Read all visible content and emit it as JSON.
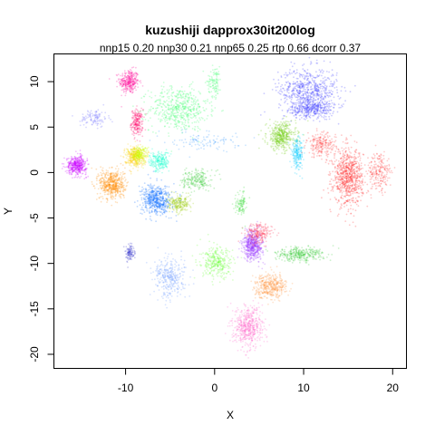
{
  "chart_data": {
    "type": "scatter",
    "title": "kuzushiji dapprox30it200log",
    "subtitle": "nnp15 0.20 nnp30 0.21 nnp65 0.25 rtp 0.66 dcorr 0.37",
    "xlabel": "X",
    "ylabel": "Y",
    "xlim": [
      -18,
      21.5
    ],
    "ylim": [
      -21.5,
      13
    ],
    "xticks": [
      -10,
      0,
      10,
      20
    ],
    "yticks": [
      10,
      5,
      0,
      -5,
      -10,
      -15,
      -20
    ],
    "grid": false,
    "legend": "none",
    "clusters": [
      {
        "color": "#ff0099",
        "center": [
          -9.6,
          10.0
        ],
        "spread": [
          1.0,
          1.2
        ],
        "weight": 3
      },
      {
        "color": "#ff0066",
        "center": [
          -8.7,
          5.5
        ],
        "spread": [
          0.6,
          1.3
        ],
        "weight": 2
      },
      {
        "color": "#33ff66",
        "center": [
          -4.0,
          7.0
        ],
        "spread": [
          3.0,
          2.2
        ],
        "weight": 5
      },
      {
        "color": "#33ff66",
        "center": [
          0.0,
          10.0
        ],
        "spread": [
          0.7,
          1.5
        ],
        "weight": 1
      },
      {
        "color": "#3333ff",
        "center": [
          10.5,
          9.0
        ],
        "spread": [
          3.0,
          2.3
        ],
        "weight": 6
      },
      {
        "color": "#3333ff",
        "center": [
          11.0,
          7.0
        ],
        "spread": [
          2.2,
          0.8
        ],
        "weight": 3
      },
      {
        "color": "#6666ff",
        "center": [
          -13.5,
          6.0
        ],
        "spread": [
          1.4,
          0.9
        ],
        "weight": 1
      },
      {
        "color": "#66cc00",
        "center": [
          7.5,
          4.0
        ],
        "spread": [
          1.5,
          1.4
        ],
        "weight": 4
      },
      {
        "color": "#00ccff",
        "center": [
          9.3,
          2.0
        ],
        "spread": [
          0.6,
          1.4
        ],
        "weight": 2
      },
      {
        "color": "#ff2222",
        "center": [
          15.0,
          -0.5
        ],
        "spread": [
          1.5,
          2.8
        ],
        "weight": 7
      },
      {
        "color": "#ff3333",
        "center": [
          12.0,
          3.0
        ],
        "spread": [
          1.5,
          1.2
        ],
        "weight": 2
      },
      {
        "color": "#ff3333",
        "center": [
          18.5,
          0.0
        ],
        "spread": [
          1.3,
          2.0
        ],
        "weight": 2
      },
      {
        "color": "#cc00ff",
        "center": [
          -15.5,
          0.8
        ],
        "spread": [
          1.0,
          0.9
        ],
        "weight": 4
      },
      {
        "color": "#ff8c00",
        "center": [
          -11.5,
          -1.3
        ],
        "spread": [
          1.3,
          1.5
        ],
        "weight": 5
      },
      {
        "color": "#ffcc00",
        "center": [
          -9.0,
          1.8
        ],
        "spread": [
          1.0,
          1.0
        ],
        "weight": 3
      },
      {
        "color": "#ccff00",
        "center": [
          -8.5,
          2.0
        ],
        "spread": [
          0.9,
          0.8
        ],
        "weight": 2
      },
      {
        "color": "#00ffcc",
        "center": [
          -6.2,
          1.2
        ],
        "spread": [
          1.0,
          1.0
        ],
        "weight": 2
      },
      {
        "color": "#0066ff",
        "center": [
          -6.5,
          -3.0
        ],
        "spread": [
          1.5,
          1.5
        ],
        "weight": 5
      },
      {
        "color": "#99cc00",
        "center": [
          -4.0,
          -3.5
        ],
        "spread": [
          1.2,
          0.8
        ],
        "weight": 2
      },
      {
        "color": "#33cc33",
        "center": [
          -2.0,
          -0.8
        ],
        "spread": [
          1.5,
          1.0
        ],
        "weight": 2
      },
      {
        "color": "#3399ff",
        "center": [
          -1.0,
          3.5
        ],
        "spread": [
          3.5,
          1.0
        ],
        "weight": 1
      },
      {
        "color": "#9933ff",
        "center": [
          4.3,
          -8.0
        ],
        "spread": [
          1.0,
          1.5
        ],
        "weight": 5
      },
      {
        "color": "#ff3355",
        "center": [
          5.0,
          -6.7
        ],
        "spread": [
          1.3,
          1.0
        ],
        "weight": 2
      },
      {
        "color": "#33cc33",
        "center": [
          9.5,
          -9.0
        ],
        "spread": [
          2.5,
          0.7
        ],
        "weight": 3
      },
      {
        "color": "#66ff33",
        "center": [
          0.3,
          -10.0
        ],
        "spread": [
          1.6,
          1.5
        ],
        "weight": 3
      },
      {
        "color": "#ff9944",
        "center": [
          6.3,
          -12.5
        ],
        "spread": [
          1.6,
          1.2
        ],
        "weight": 4
      },
      {
        "color": "#ff66cc",
        "center": [
          3.8,
          -17.0
        ],
        "spread": [
          1.5,
          2.0
        ],
        "weight": 5
      },
      {
        "color": "#6699ff",
        "center": [
          -5.0,
          -11.5
        ],
        "spread": [
          1.6,
          2.0
        ],
        "weight": 3
      },
      {
        "color": "#3333cc",
        "center": [
          -9.5,
          -8.8
        ],
        "spread": [
          0.4,
          0.8
        ],
        "weight": 1
      },
      {
        "color": "#33dd33",
        "center": [
          3.0,
          -3.5
        ],
        "spread": [
          0.6,
          1.2
        ],
        "weight": 1
      }
    ]
  }
}
